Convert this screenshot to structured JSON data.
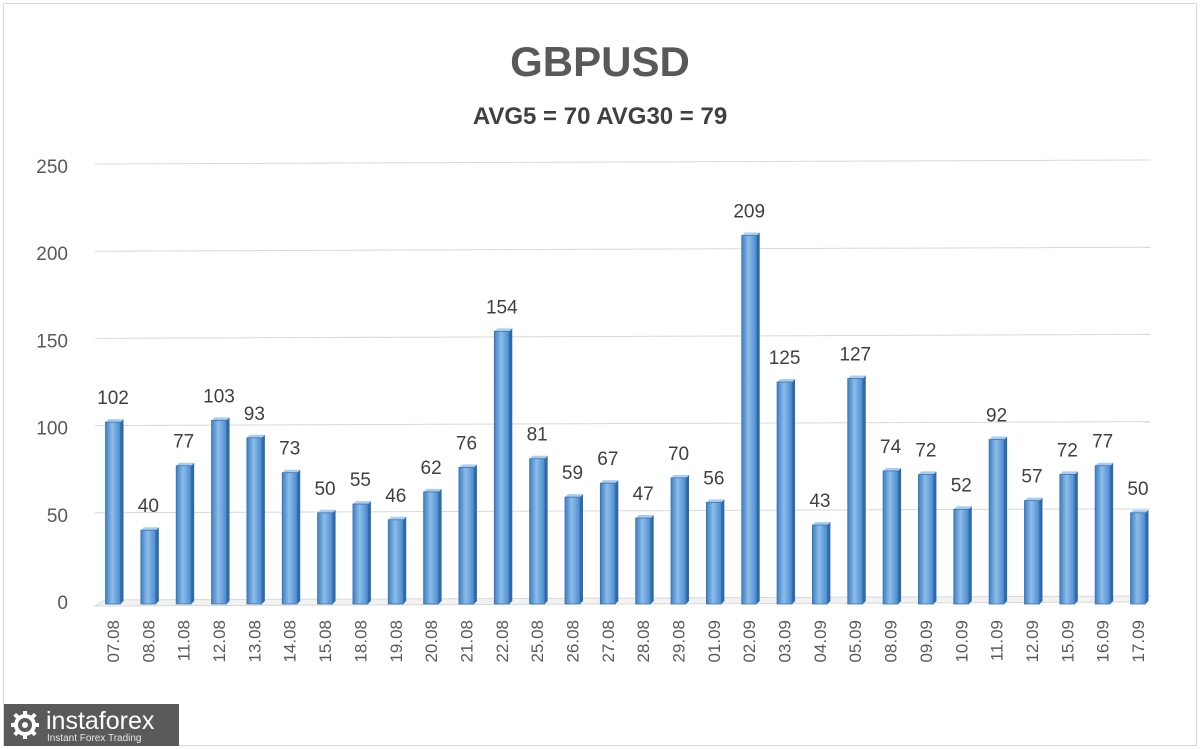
{
  "chart_data": {
    "type": "bar",
    "title": "GBPUSD",
    "subtitle": "AVG5 = 70 AVG30 = 79",
    "categories": [
      "07.08",
      "08.08",
      "11.08",
      "12.08",
      "13.08",
      "14.08",
      "15.08",
      "18.08",
      "19.08",
      "20.08",
      "21.08",
      "22.08",
      "25.08",
      "26.08",
      "27.08",
      "28.08",
      "29.08",
      "01.09",
      "02.09",
      "03.09",
      "04.09",
      "05.09",
      "08.09",
      "09.09",
      "10.09",
      "11.09",
      "12.09",
      "15.09",
      "16.09",
      "17.09"
    ],
    "values": [
      102,
      40,
      77,
      103,
      93,
      73,
      50,
      55,
      46,
      62,
      76,
      154,
      81,
      59,
      67,
      47,
      70,
      56,
      209,
      125,
      43,
      127,
      74,
      72,
      52,
      92,
      57,
      72,
      77,
      50
    ],
    "ylim": [
      0,
      250
    ],
    "yticks": [
      0,
      50,
      100,
      150,
      200,
      250
    ],
    "grid": true,
    "legend": "none",
    "bar_color": "#5b9bd5"
  },
  "logo": {
    "name": "instaforex",
    "tagline": "Instant Forex Trading"
  }
}
